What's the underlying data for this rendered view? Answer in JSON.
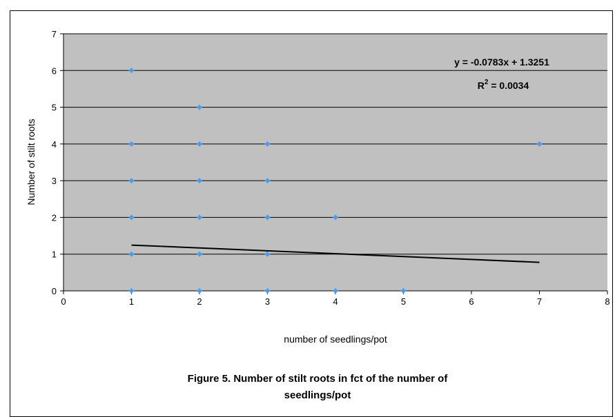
{
  "chart_data": {
    "type": "scatter",
    "xlabel": "number of seedlings/pot",
    "ylabel": "Number of stilt roots",
    "xlim": [
      0,
      8
    ],
    "ylim": [
      0,
      7
    ],
    "x_ticks": [
      0,
      1,
      2,
      3,
      4,
      5,
      6,
      7,
      8
    ],
    "y_ticks": [
      0,
      1,
      2,
      3,
      4,
      5,
      6,
      7
    ],
    "grid": "horizontal",
    "plot_background": "#c0c0c0",
    "marker_color": "#4a9cf0",
    "points": [
      {
        "x": 1,
        "y": 6
      },
      {
        "x": 1,
        "y": 4
      },
      {
        "x": 1,
        "y": 3
      },
      {
        "x": 1,
        "y": 2
      },
      {
        "x": 1,
        "y": 1
      },
      {
        "x": 1,
        "y": 0
      },
      {
        "x": 2,
        "y": 5
      },
      {
        "x": 2,
        "y": 4
      },
      {
        "x": 2,
        "y": 3
      },
      {
        "x": 2,
        "y": 2
      },
      {
        "x": 2,
        "y": 1
      },
      {
        "x": 2,
        "y": 0
      },
      {
        "x": 3,
        "y": 4
      },
      {
        "x": 3,
        "y": 3
      },
      {
        "x": 3,
        "y": 2
      },
      {
        "x": 3,
        "y": 1
      },
      {
        "x": 3,
        "y": 0
      },
      {
        "x": 4,
        "y": 2
      },
      {
        "x": 4,
        "y": 0
      },
      {
        "x": 5,
        "y": 0
      },
      {
        "x": 7,
        "y": 4
      }
    ],
    "trendline": {
      "slope": -0.0783,
      "intercept": 1.3251,
      "x_range": [
        1,
        7
      ],
      "color": "#000000"
    },
    "equation_text": "y = -0.0783x + 1.3251",
    "r2_prefix": "R",
    "r2_sup": "2",
    "r2_suffix": " = 0.0034"
  },
  "caption": {
    "line1": "Figure 5. Number of stilt roots in fct of the number of",
    "line2": "seedlings/pot"
  }
}
